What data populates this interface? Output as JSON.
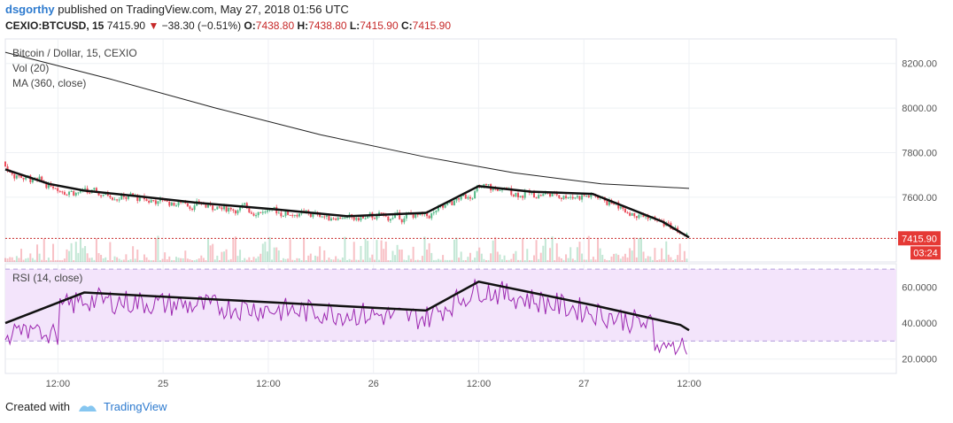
{
  "header": {
    "author": "dsgorthy",
    "published": "published on TradingView.com, May 27, 2018 01:56 UTC",
    "symbol": "CEXIO:BTCUSD, 15",
    "last": "7415.90",
    "change": "−38.30 (−0.51%)",
    "o_label": "O:",
    "o_value": "7438.80",
    "h_label": "H:",
    "h_value": "7438.80",
    "l_label": "L:",
    "l_value": "7415.90",
    "c_label": "C:",
    "c_value": "7415.90"
  },
  "legend": {
    "title": "Bitcoin / Dollar, 15, CEXIO",
    "vol": "Vol (20)",
    "ma": "MA (360, close)",
    "rsi": "RSI (14, close)"
  },
  "price_tag": {
    "value": "7415.90",
    "countdown": "03:24"
  },
  "footer": {
    "created_with": "Created with",
    "brand": "TradingView"
  },
  "colors": {
    "up": "#53b987",
    "down": "#eb4d5c",
    "rsi": "#9c27b0",
    "rsi_band": "#f3e4fb",
    "ma": "#222222",
    "trend": "#111111",
    "price_line": "#c62828"
  },
  "chart_data": [
    {
      "type": "candlestick",
      "title": "Bitcoin / Dollar, 15, CEXIO",
      "x_ticks": [
        "12:00",
        "25",
        "12:00",
        "26",
        "12:00",
        "27",
        "12:00"
      ],
      "y_ticks": [
        "8200.00",
        "8000.00",
        "7800.00",
        "7600.00"
      ],
      "ylim": [
        7310,
        8310
      ],
      "current_price": 7415.9,
      "series": [
        {
          "name": "MA (360, close)",
          "x": [
            0,
            12,
            24,
            36,
            48,
            58,
            68,
            78
          ],
          "values": [
            8250,
            8130,
            8000,
            7880,
            7780,
            7710,
            7660,
            7640
          ]
        }
      ],
      "trendlines": [
        {
          "x": [
            0,
            5,
            9,
            15,
            22,
            31,
            39,
            48
          ],
          "values": [
            7725,
            7660,
            7630,
            7605,
            7575,
            7545,
            7515,
            7530
          ]
        },
        {
          "x": [
            48,
            54,
            60,
            67,
            75,
            78
          ],
          "values": [
            7530,
            7650,
            7625,
            7615,
            7490,
            7420
          ]
        }
      ]
    },
    {
      "type": "line",
      "title": "RSI (14, close)",
      "y_ticks": [
        "60.0000",
        "40.0000",
        "20.0000"
      ],
      "ylim": [
        12,
        73
      ],
      "bands": [
        30,
        70
      ],
      "trendlines": [
        {
          "x": [
            0,
            9,
            48
          ],
          "values": [
            40,
            57,
            47
          ]
        },
        {
          "x": [
            48,
            54,
            67,
            77,
            78
          ],
          "values": [
            47,
            63,
            50,
            39,
            36
          ]
        }
      ]
    }
  ]
}
